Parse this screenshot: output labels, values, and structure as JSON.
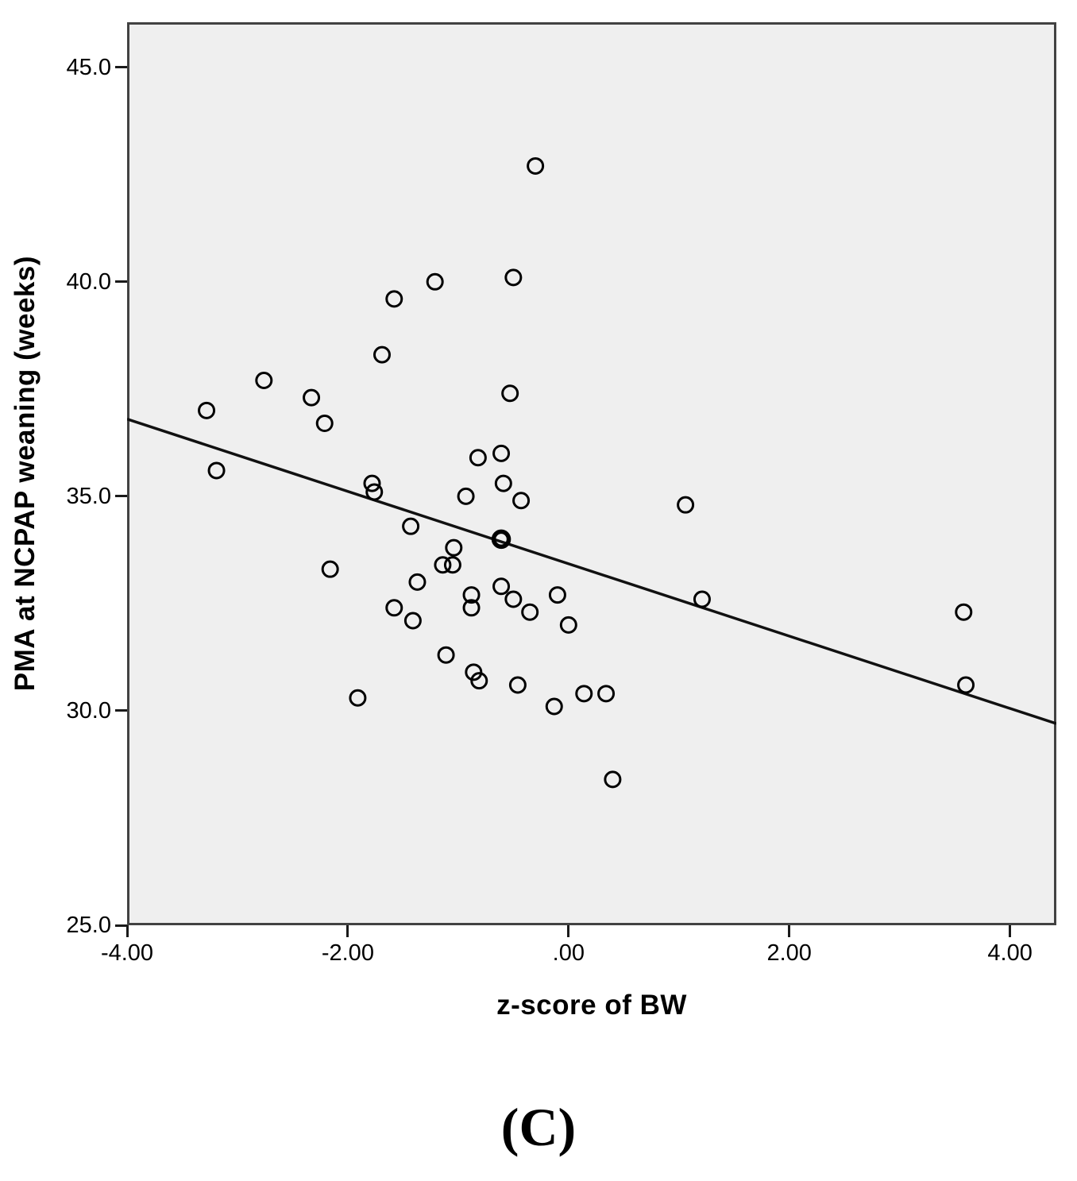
{
  "figure": {
    "panel_label": "(C)",
    "colors": {
      "plot_background": "#efefef",
      "frame": "#424242",
      "marker": "#000000",
      "fit_line": "#111111",
      "tick": "#1a1a1a"
    },
    "y_axis": {
      "ticks": [
        {
          "value": 45.0,
          "label": "45.0"
        },
        {
          "value": 40.0,
          "label": "40.0"
        },
        {
          "value": 35.0,
          "label": "35.0"
        },
        {
          "value": 30.0,
          "label": "30.0"
        },
        {
          "value": 25.0,
          "label": "25.0"
        }
      ]
    },
    "x_axis": {
      "ticks": [
        {
          "value": -4.0,
          "label": "-4.00"
        },
        {
          "value": -2.0,
          "label": "-2.00"
        },
        {
          "value": 0.0,
          "label": ".00"
        },
        {
          "value": 2.0,
          "label": "2.00"
        },
        {
          "value": 4.0,
          "label": "4.00"
        }
      ]
    }
  },
  "chart_data": {
    "type": "scatter",
    "title": "",
    "xlabel": "z-score of BW",
    "ylabel": "PMA at NCPAP weaning (weeks)",
    "xlim": [
      -4.0,
      4.42
    ],
    "ylim": [
      25.0,
      46.05
    ],
    "grid": false,
    "legend": false,
    "points": [
      [
        -0.3,
        42.7
      ],
      [
        -0.5,
        40.1
      ],
      [
        -1.21,
        40.0
      ],
      [
        -1.58,
        39.6
      ],
      [
        -1.69,
        38.3
      ],
      [
        -2.76,
        37.7
      ],
      [
        -2.33,
        37.3
      ],
      [
        -3.28,
        37.0
      ],
      [
        -2.21,
        36.7
      ],
      [
        -0.53,
        37.4
      ],
      [
        -3.19,
        35.6
      ],
      [
        -0.61,
        36.0
      ],
      [
        -0.82,
        35.9
      ],
      [
        -1.78,
        35.3
      ],
      [
        -1.76,
        35.1
      ],
      [
        -0.59,
        35.3
      ],
      [
        -0.93,
        35.0
      ],
      [
        -0.43,
        34.9
      ],
      [
        1.06,
        34.8
      ],
      [
        -1.43,
        34.3
      ],
      [
        -0.61,
        34.0,
        1
      ],
      [
        -2.16,
        33.3
      ],
      [
        -1.04,
        33.8
      ],
      [
        -1.14,
        33.4
      ],
      [
        -1.05,
        33.4
      ],
      [
        -1.37,
        33.0
      ],
      [
        -0.88,
        32.7
      ],
      [
        -0.88,
        32.4
      ],
      [
        -0.61,
        32.9
      ],
      [
        -0.5,
        32.6
      ],
      [
        -0.35,
        32.3
      ],
      [
        -0.1,
        32.7
      ],
      [
        0.0,
        32.0
      ],
      [
        1.21,
        32.6
      ],
      [
        -1.58,
        32.4
      ],
      [
        -1.41,
        32.1
      ],
      [
        -1.11,
        31.3
      ],
      [
        -0.86,
        30.9
      ],
      [
        -0.81,
        30.7
      ],
      [
        -0.46,
        30.6
      ],
      [
        -1.91,
        30.3
      ],
      [
        -0.13,
        30.1
      ],
      [
        0.14,
        30.4
      ],
      [
        0.34,
        30.4
      ],
      [
        0.4,
        28.4
      ],
      [
        3.58,
        32.3
      ],
      [
        3.6,
        30.6
      ]
    ],
    "fit_line": {
      "x1": -4.0,
      "y1": 36.8,
      "x2": 4.42,
      "y2": 29.7
    }
  }
}
